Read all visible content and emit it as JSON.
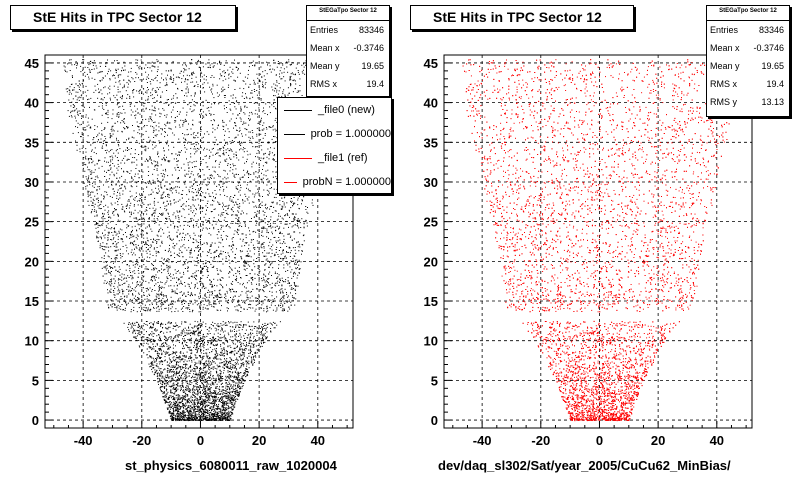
{
  "chart_data": [
    {
      "type": "scatter",
      "title": "StE Hits in TPC Sector 12",
      "xlabel": "st_physics_6080011_raw_1020004",
      "ylabel": "",
      "xlim": [
        -53,
        52
      ],
      "ylim": [
        -1,
        46
      ],
      "x_ticks": [
        -40,
        -20,
        0,
        20,
        40
      ],
      "y_ticks": [
        0,
        5,
        10,
        15,
        20,
        25,
        30,
        35,
        40,
        45
      ],
      "grid": true,
      "marker_color": "#000000",
      "row_extents": [
        [
          0,
          -10,
          10
        ],
        [
          5,
          -15,
          15
        ],
        [
          10,
          -22,
          22
        ],
        [
          12,
          -26,
          26
        ],
        [
          14,
          -32,
          32
        ],
        [
          22,
          -35,
          35
        ],
        [
          30,
          -40,
          40
        ],
        [
          38,
          -45,
          45
        ],
        [
          45,
          -47,
          47
        ]
      ],
      "gap_rows": [
        12.5,
        13.7
      ],
      "stats": {
        "header": "StEGaTpo Sector 12",
        "rows": [
          {
            "label": "Entries",
            "value": "83346"
          },
          {
            "label": "Mean x",
            "value": "-0.3746"
          },
          {
            "label": "Mean y",
            "value": "19.65"
          },
          {
            "label": "RMS x",
            "value": "19.4"
          }
        ]
      },
      "legend": [
        {
          "label": "_file0 (new)",
          "color": "#000000"
        },
        {
          "label": "prob = 1.000000",
          "color": "#000000"
        },
        {
          "label": "_file1 (ref)",
          "color": "#ff0000"
        },
        {
          "label": "probN = 1.000000",
          "color": "#ff0000"
        }
      ]
    },
    {
      "type": "scatter",
      "title": "StE Hits in TPC Sector 12",
      "xlabel": "dev/daq_sl302/Sat/year_2005/CuCu62_MinBias/",
      "ylabel": "",
      "xlim": [
        -53,
        52
      ],
      "ylim": [
        -1,
        46
      ],
      "x_ticks": [
        -40,
        -20,
        0,
        20,
        40
      ],
      "y_ticks": [
        0,
        5,
        10,
        15,
        20,
        25,
        30,
        35,
        40,
        45
      ],
      "grid": true,
      "marker_color": "#ff0000",
      "row_extents": [
        [
          0,
          -10,
          10
        ],
        [
          5,
          -15,
          15
        ],
        [
          10,
          -22,
          22
        ],
        [
          12,
          -26,
          26
        ],
        [
          14,
          -32,
          32
        ],
        [
          22,
          -35,
          35
        ],
        [
          30,
          -40,
          40
        ],
        [
          38,
          -45,
          45
        ],
        [
          45,
          -47,
          47
        ]
      ],
      "gap_rows": [
        12.5,
        13.7
      ],
      "stats": {
        "header": "StEGaTpo Sector 12",
        "rows": [
          {
            "label": "Entries",
            "value": "83346"
          },
          {
            "label": "Mean x",
            "value": "-0.3746"
          },
          {
            "label": "Mean y",
            "value": "19.65"
          },
          {
            "label": "RMS x",
            "value": "19.4"
          },
          {
            "label": "RMS y",
            "value": "13.13"
          }
        ]
      }
    }
  ]
}
